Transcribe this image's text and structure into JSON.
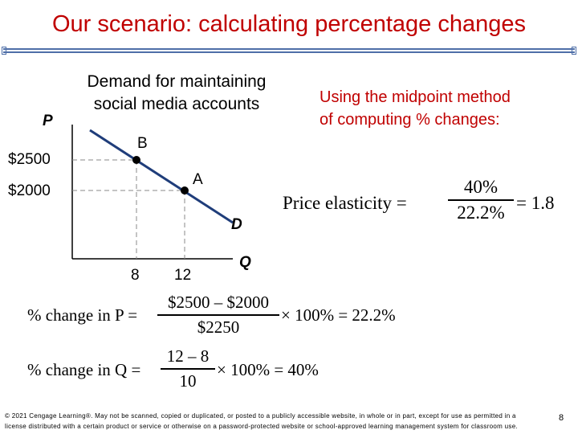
{
  "title": "Our scenario: calculating percentage changes",
  "graph": {
    "y_axis_label": "P",
    "x_axis_label": "Q",
    "price_ticks": [
      "$2500",
      "$2000"
    ],
    "quantity_ticks": [
      "8",
      "12"
    ],
    "point_b_label": "B",
    "point_a_label": "A",
    "curve_label": "D",
    "caption_line1": "Demand for maintaining",
    "caption_line2": "social media accounts"
  },
  "midpoint_note": {
    "line1": "Using the midpoint method",
    "line2": "of computing % changes:"
  },
  "elasticity": {
    "label": "Price elasticity =",
    "numerator": "40%",
    "denominator": "22.2%",
    "result": "= 1.8"
  },
  "pct_change_p": {
    "label": "% change in P =",
    "numerator": "$2500 – $2000",
    "denominator": "$2250",
    "tail": "× 100% = 22.2%"
  },
  "pct_change_q": {
    "label": "% change in Q =",
    "numerator": "12 – 8",
    "denominator": "10",
    "tail": "× 100% = 40%"
  },
  "footer": "© 2021 Cengage Learning®. May not be scanned, copied or duplicated, or posted to a publicly accessible website, in whole or in part, except for use as permitted in a license distributed with a certain product or service or otherwise on a password-protected website or school-approved learning management system for classroom use.",
  "page_number": "8",
  "colors": {
    "title": "#c00000",
    "curve": "#1f3d7a",
    "rule": "#4f6fa8",
    "note": "#c00000"
  }
}
